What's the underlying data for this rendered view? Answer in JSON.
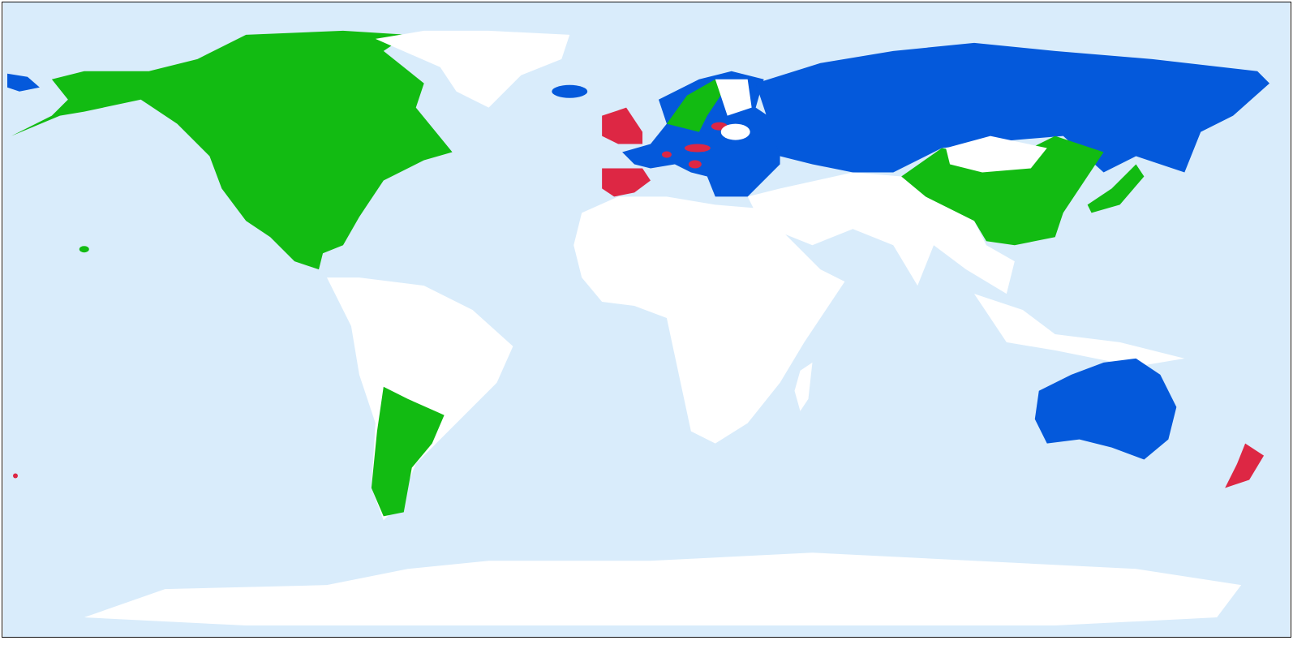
{
  "map": {
    "projection": "equirectangular",
    "colors": {
      "ocean": "#d9ecfb",
      "land_unclassified": "#ffffff",
      "category_green": "#12bb12",
      "category_blue": "#0459db",
      "category_red": "#dd2744",
      "frame": "#111111"
    }
  }
}
